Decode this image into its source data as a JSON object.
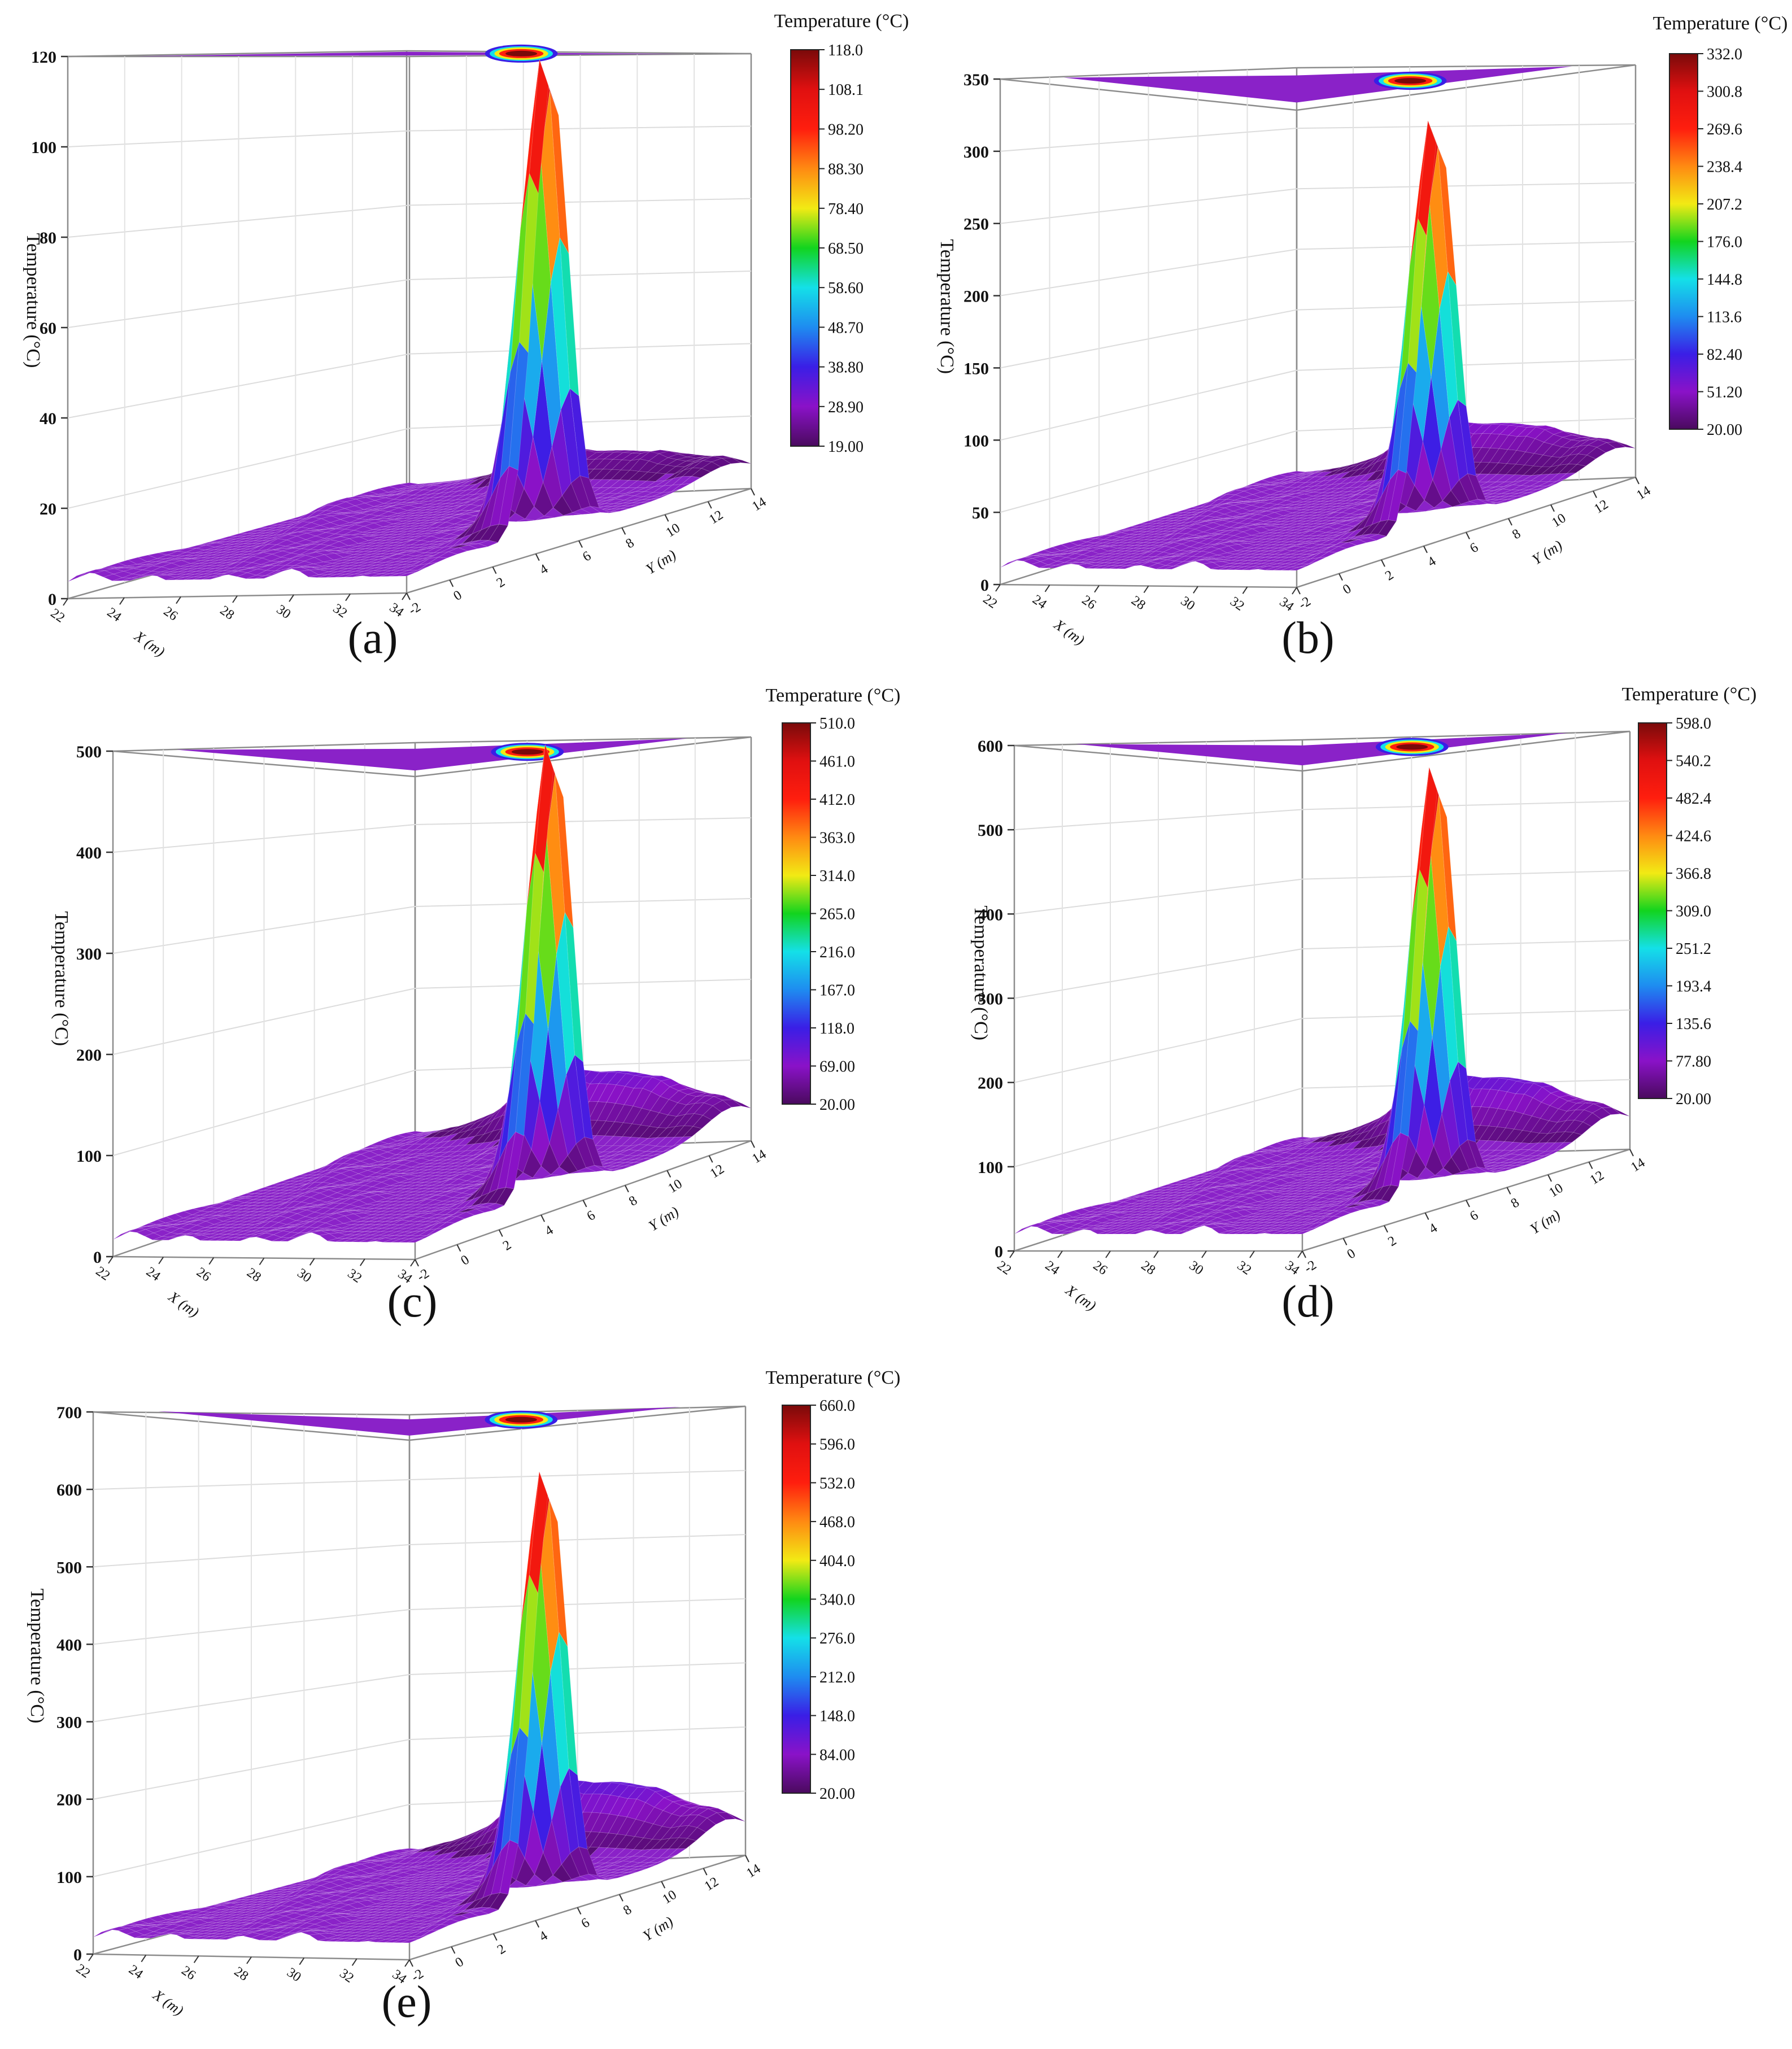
{
  "figure": {
    "colormap": [
      "#4a0a5e",
      "#8a12c8",
      "#3a1ee6",
      "#1e8cf0",
      "#14e0e8",
      "#12d41e",
      "#f2ea14",
      "#ff8a12",
      "#ff1e0e",
      "#e01010",
      "#7a0a0a"
    ],
    "surface_base_color": "#8a22c8",
    "projection_color": "#8a22c8"
  },
  "chart_data": [
    {
      "type": "surface",
      "panel_label": "(a)",
      "zlabel": "Temperature (°C)",
      "xlabel": "X (m)",
      "ylabel": "Y (m)",
      "colorbar_title": "Temperature (°C)",
      "zlim": [
        0,
        120
      ],
      "z_ticks": [
        "0",
        "20",
        "40",
        "60",
        "80",
        "100",
        "120"
      ],
      "x_ticks": [
        "22",
        "24",
        "26",
        "28",
        "30",
        "32",
        "34"
      ],
      "y_ticks": [
        "-2",
        "0",
        "2",
        "4",
        "6",
        "8",
        "10",
        "12",
        "14"
      ],
      "colorbar_ticks": [
        "118.0",
        "108.1",
        "98.20",
        "88.30",
        "78.40",
        "68.50",
        "58.60",
        "48.70",
        "38.80",
        "28.90",
        "19.00"
      ],
      "z_min": 19,
      "z_peak": 118,
      "peak_location": {
        "x": 24,
        "y": 10
      },
      "far_ridge_max": 26
    },
    {
      "type": "surface",
      "panel_label": "(b)",
      "zlabel": "Temperature (°C)",
      "xlabel": "X (m)",
      "ylabel": "Y (m)",
      "colorbar_title": "Temperature (°C)",
      "zlim": [
        0,
        350
      ],
      "z_ticks": [
        "0",
        "50",
        "100",
        "150",
        "200",
        "250",
        "300",
        "350"
      ],
      "x_ticks": [
        "22",
        "24",
        "26",
        "28",
        "30",
        "32",
        "34"
      ],
      "y_ticks": [
        "-2",
        "0",
        "2",
        "4",
        "6",
        "8",
        "10",
        "12",
        "14"
      ],
      "colorbar_ticks": [
        "332.0",
        "300.8",
        "269.6",
        "238.4",
        "207.2",
        "176.0",
        "144.8",
        "113.6",
        "82.40",
        "51.20",
        "20.00"
      ],
      "z_min": 20,
      "z_peak": 332,
      "peak_location": {
        "x": 24,
        "y": 10
      },
      "far_ridge_max": 60
    },
    {
      "type": "surface",
      "panel_label": "(c)",
      "zlabel": "Temperature (°C)",
      "xlabel": "X (m)",
      "ylabel": "Y (m)",
      "colorbar_title": "Temperature (°C)",
      "zlim": [
        0,
        500
      ],
      "z_ticks": [
        "0",
        "100",
        "200",
        "300",
        "400",
        "500"
      ],
      "x_ticks": [
        "22",
        "24",
        "26",
        "28",
        "30",
        "32",
        "34"
      ],
      "y_ticks": [
        "-2",
        "0",
        "2",
        "4",
        "6",
        "8",
        "10",
        "12",
        "14"
      ],
      "colorbar_ticks": [
        "510.0",
        "461.0",
        "412.0",
        "363.0",
        "314.0",
        "265.0",
        "216.0",
        "167.0",
        "118.0",
        "69.00",
        "20.00"
      ],
      "z_min": 20,
      "z_peak": 510,
      "peak_location": {
        "x": 24,
        "y": 10
      },
      "far_ridge_max": 95
    },
    {
      "type": "surface",
      "panel_label": "(d)",
      "zlabel": "Temperature (°C)",
      "xlabel": "X (m)",
      "ylabel": "Y (m)",
      "colorbar_title": "Temperature (°C)",
      "zlim": [
        0,
        600
      ],
      "z_ticks": [
        "0",
        "100",
        "200",
        "300",
        "400",
        "500",
        "600"
      ],
      "x_ticks": [
        "22",
        "24",
        "26",
        "28",
        "30",
        "32",
        "34"
      ],
      "y_ticks": [
        "-2",
        "0",
        "2",
        "4",
        "6",
        "8",
        "10",
        "12",
        "14"
      ],
      "colorbar_ticks": [
        "598.0",
        "540.2",
        "482.4",
        "424.6",
        "366.8",
        "309.0",
        "251.2",
        "193.4",
        "135.6",
        "77.80",
        "20.00"
      ],
      "z_min": 20,
      "z_peak": 598,
      "peak_location": {
        "x": 24,
        "y": 10
      },
      "far_ridge_max": 115
    },
    {
      "type": "surface",
      "panel_label": "(e)",
      "zlabel": "Temperature (°C)",
      "xlabel": "X (m)",
      "ylabel": "Y (m)",
      "colorbar_title": "Temperature (°C)",
      "zlim": [
        0,
        700
      ],
      "z_ticks": [
        "0",
        "100",
        "200",
        "300",
        "400",
        "500",
        "600",
        "700"
      ],
      "x_ticks": [
        "22",
        "24",
        "26",
        "28",
        "30",
        "32",
        "34"
      ],
      "y_ticks": [
        "-2",
        "0",
        "2",
        "4",
        "6",
        "8",
        "10",
        "12",
        "14"
      ],
      "colorbar_ticks": [
        "660.0",
        "596.0",
        "532.0",
        "468.0",
        "404.0",
        "340.0",
        "276.0",
        "212.0",
        "148.0",
        "84.00",
        "20.00"
      ],
      "z_min": 20,
      "z_peak": 660,
      "peak_location": {
        "x": 24,
        "y": 10
      },
      "far_ridge_max": 130
    }
  ]
}
